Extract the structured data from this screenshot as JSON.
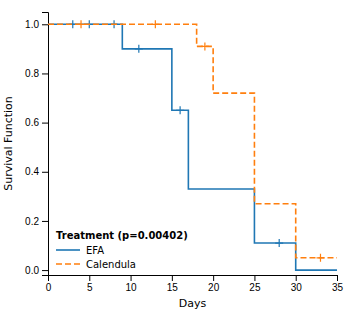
{
  "chart_data": {
    "type": "line",
    "xlabel": "Days",
    "ylabel": "Survival Function",
    "xlim": [
      0,
      35
    ],
    "ylim": [
      -0.02,
      1.05
    ],
    "xticks": [
      0,
      5,
      10,
      15,
      20,
      25,
      30,
      35
    ],
    "yticks": [
      {
        "value": 0.0,
        "label": "0.0"
      },
      0.2,
      0.4,
      0.6,
      0.8,
      {
        "value": 1.0,
        "label": "1.0"
      }
    ],
    "grid": false,
    "legend": "lower left",
    "legend_title": "Treatment (p=0.00402)",
    "series": [
      {
        "name": "EFA",
        "line_style": "solid",
        "marker": "plus",
        "x": [
          0,
          9,
          9,
          13,
          13,
          15,
          15,
          17,
          17,
          20,
          20,
          25,
          25,
          30,
          30,
          35
        ],
        "values": [
          1.0,
          1.0,
          0.9,
          0.9,
          0.9,
          0.9,
          0.65,
          0.65,
          0.33,
          0.33,
          0.33,
          0.33,
          0.11,
          0.11,
          0.0,
          0.0
        ],
        "censor_x": [
          3,
          5,
          8,
          11,
          16,
          28
        ],
        "censor_values": [
          1.0,
          1.0,
          1.0,
          0.9,
          0.65,
          0.11
        ]
      },
      {
        "name": "Calendula",
        "line_style": "dashed",
        "marker": "plus",
        "x": [
          0,
          15,
          15,
          18,
          18,
          20,
          20,
          25,
          25,
          30,
          30,
          35
        ],
        "values": [
          1.0,
          1.0,
          1.0,
          1.0,
          0.91,
          0.91,
          0.72,
          0.72,
          0.27,
          0.27,
          0.05,
          0.05
        ],
        "censor_x": [
          4,
          13,
          19,
          33
        ],
        "censor_values": [
          1.0,
          1.0,
          0.91,
          0.05
        ]
      }
    ]
  }
}
